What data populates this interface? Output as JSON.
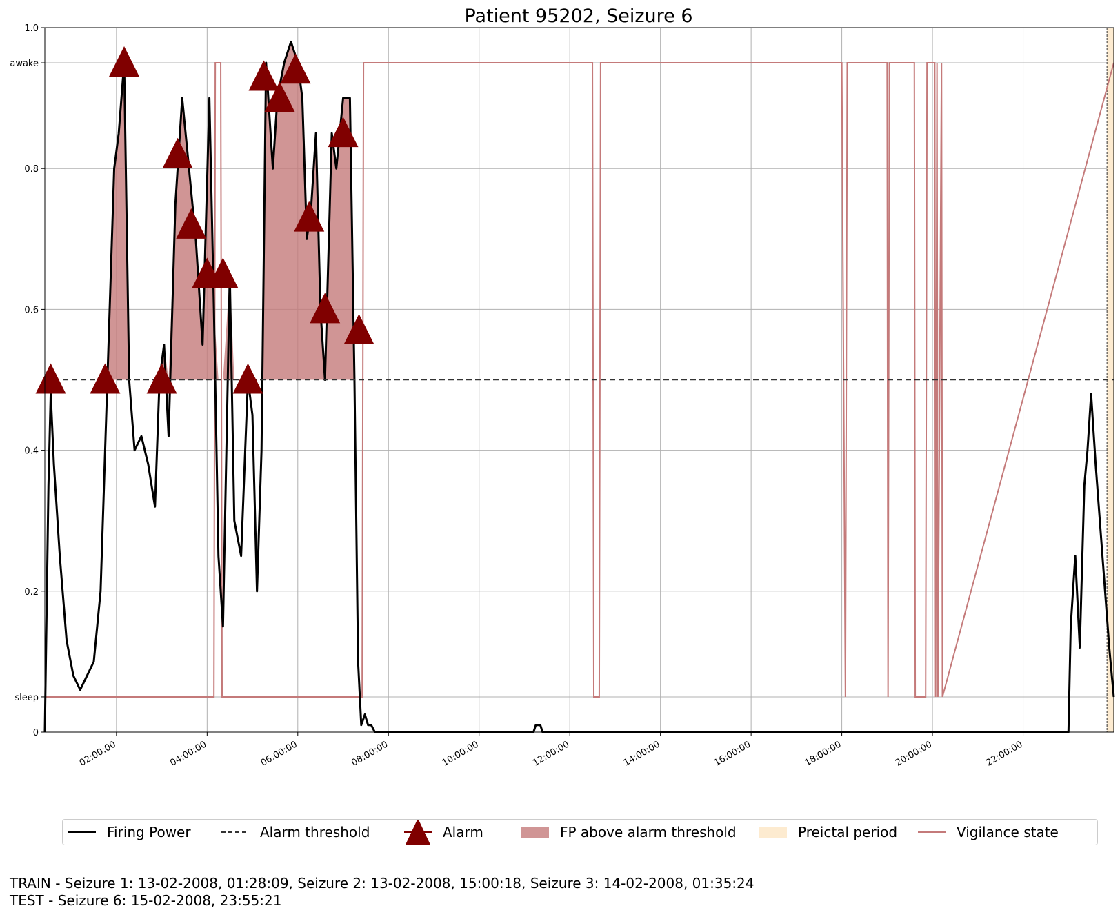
{
  "chart_data": {
    "type": "line",
    "title": "Patient 95202, Seizure 6",
    "xlabel": "",
    "ylabel": "",
    "x_range_hours": [
      0.42,
      24.0
    ],
    "ylim": [
      0,
      1.0
    ],
    "y_ticks": [
      {
        "value": 0,
        "label": "0"
      },
      {
        "value": 0.05,
        "label": "sleep"
      },
      {
        "value": 0.2,
        "label": "0.2"
      },
      {
        "value": 0.4,
        "label": "0.4"
      },
      {
        "value": 0.6,
        "label": "0.6"
      },
      {
        "value": 0.8,
        "label": "0.8"
      },
      {
        "value": 0.95,
        "label": "awake"
      },
      {
        "value": 1.0,
        "label": "1.0"
      }
    ],
    "x_ticks": [
      {
        "hour": 2,
        "label": "02:00:00"
      },
      {
        "hour": 4,
        "label": "04:00:00"
      },
      {
        "hour": 6,
        "label": "06:00:00"
      },
      {
        "hour": 8,
        "label": "08:00:00"
      },
      {
        "hour": 10,
        "label": "10:00:00"
      },
      {
        "hour": 12,
        "label": "12:00:00"
      },
      {
        "hour": 14,
        "label": "14:00:00"
      },
      {
        "hour": 16,
        "label": "16:00:00"
      },
      {
        "hour": 18,
        "label": "18:00:00"
      },
      {
        "hour": 20,
        "label": "20:00:00"
      },
      {
        "hour": 22,
        "label": "22:00:00"
      }
    ],
    "grid": true,
    "alarm_threshold": 0.5,
    "colors": {
      "firing_power": "#000000",
      "threshold": "#333333",
      "alarm": "#800000",
      "fp_fill": "#c47a7a",
      "preictal": "#fdebd0",
      "vigilance": "#c47a7a",
      "grid": "#b0b0b0"
    },
    "series": [
      {
        "name": "Firing Power",
        "x": [
          0.42,
          0.5,
          0.55,
          0.62,
          0.75,
          0.9,
          1.05,
          1.2,
          1.35,
          1.5,
          1.65,
          1.8,
          1.95,
          2.05,
          2.17,
          2.28,
          2.4,
          2.55,
          2.7,
          2.85,
          2.95,
          3.05,
          3.15,
          3.3,
          3.45,
          3.6,
          3.75,
          3.9,
          4.05,
          4.15,
          4.25,
          4.35,
          4.5,
          4.6,
          4.75,
          4.9,
          5.0,
          5.1,
          5.2,
          5.3,
          5.45,
          5.55,
          5.7,
          5.85,
          6.0,
          6.1,
          6.2,
          6.3,
          6.4,
          6.5,
          6.6,
          6.75,
          6.85,
          7.0,
          7.15,
          7.25,
          7.33,
          7.4,
          7.48,
          7.55,
          7.62,
          7.7,
          8.0,
          11.2,
          11.25,
          11.35,
          11.4,
          23.0,
          23.05,
          23.15,
          23.25,
          23.35,
          23.42,
          23.5,
          23.6,
          23.75,
          23.9,
          24.0
        ],
        "values": [
          0.0,
          0.35,
          0.48,
          0.38,
          0.25,
          0.13,
          0.08,
          0.06,
          0.08,
          0.1,
          0.2,
          0.5,
          0.8,
          0.85,
          0.95,
          0.5,
          0.4,
          0.42,
          0.38,
          0.32,
          0.5,
          0.55,
          0.42,
          0.75,
          0.9,
          0.8,
          0.7,
          0.55,
          0.9,
          0.6,
          0.25,
          0.15,
          0.65,
          0.3,
          0.25,
          0.5,
          0.45,
          0.2,
          0.4,
          0.95,
          0.8,
          0.9,
          0.95,
          0.98,
          0.95,
          0.9,
          0.7,
          0.75,
          0.85,
          0.6,
          0.5,
          0.85,
          0.8,
          0.9,
          0.9,
          0.5,
          0.1,
          0.01,
          0.025,
          0.01,
          0.01,
          0.0,
          0.0,
          0.0,
          0.01,
          0.01,
          0.0,
          0.0,
          0.15,
          0.25,
          0.12,
          0.35,
          0.4,
          0.48,
          0.38,
          0.25,
          0.12,
          0.05
        ]
      },
      {
        "name": "Vigilance state",
        "x": [
          0.42,
          4.15,
          4.18,
          4.3,
          4.33,
          7.42,
          7.45,
          12.5,
          12.53,
          12.65,
          12.68,
          18.0,
          18.08,
          18.12,
          19.0,
          19.02,
          19.05,
          19.6,
          19.62,
          19.85,
          19.88,
          20.05,
          20.07,
          20.1,
          20.12,
          20.2,
          20.22,
          24.0
        ],
        "values": [
          0.05,
          0.05,
          0.95,
          0.95,
          0.05,
          0.05,
          0.95,
          0.95,
          0.05,
          0.05,
          0.95,
          0.95,
          0.05,
          0.95,
          0.95,
          0.05,
          0.95,
          0.95,
          0.05,
          0.05,
          0.95,
          0.95,
          0.05,
          0.95,
          0.05,
          0.95,
          0.05,
          0.95
        ]
      }
    ],
    "alarms": [
      {
        "x": 0.55,
        "y": 0.5
      },
      {
        "x": 1.75,
        "y": 0.5
      },
      {
        "x": 2.17,
        "y": 0.95
      },
      {
        "x": 3.0,
        "y": 0.5
      },
      {
        "x": 3.35,
        "y": 0.82
      },
      {
        "x": 3.65,
        "y": 0.72
      },
      {
        "x": 4.0,
        "y": 0.65
      },
      {
        "x": 4.35,
        "y": 0.65
      },
      {
        "x": 4.9,
        "y": 0.5
      },
      {
        "x": 5.25,
        "y": 0.93
      },
      {
        "x": 5.6,
        "y": 0.9
      },
      {
        "x": 5.95,
        "y": 0.94
      },
      {
        "x": 6.25,
        "y": 0.73
      },
      {
        "x": 6.6,
        "y": 0.6
      },
      {
        "x": 7.0,
        "y": 0.85
      },
      {
        "x": 7.35,
        "y": 0.57
      }
    ],
    "preictal_period_hours": [
      23.85,
      24.0
    ],
    "legend": {
      "placement": "bottom",
      "entries": [
        "Firing Power",
        "Alarm threshold",
        "Alarm",
        "FP above alarm threshold",
        "Preictal period",
        "Vigilance state"
      ]
    }
  },
  "footer": {
    "line1": "TRAIN - Seizure 1: 13-02-2008, 01:28:09, Seizure 2: 13-02-2008, 15:00:18, Seizure 3: 14-02-2008, 01:35:24",
    "line2": "TEST - Seizure 6: 15-02-2008, 23:55:21"
  }
}
